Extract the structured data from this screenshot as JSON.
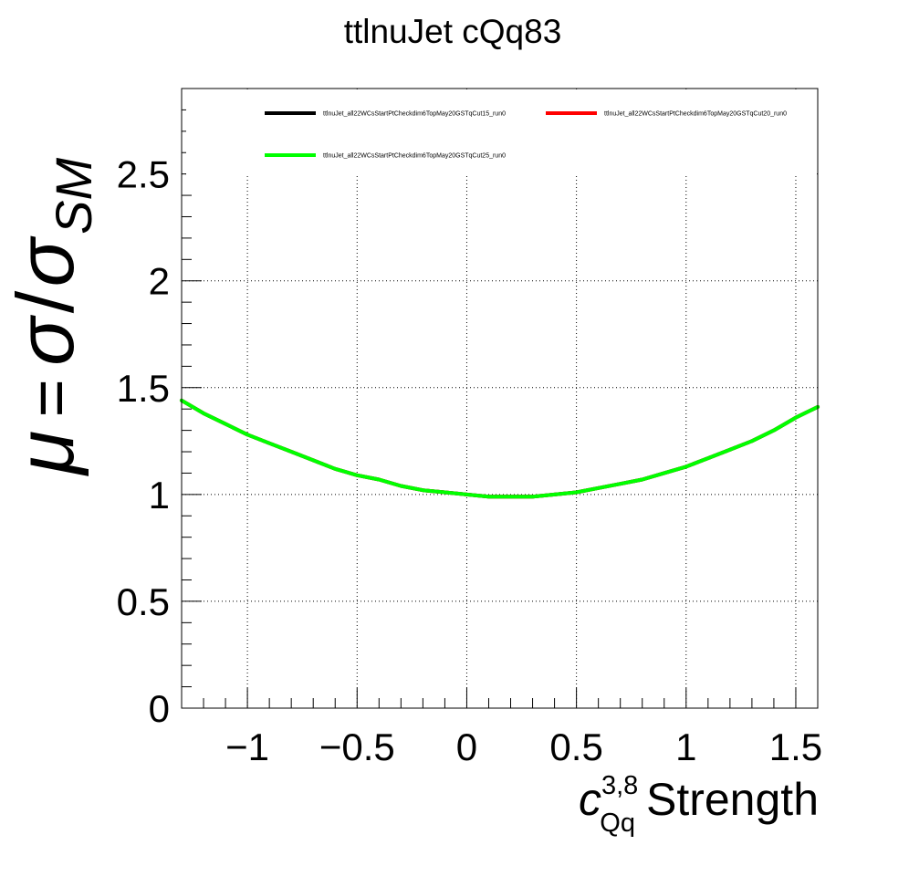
{
  "chart_data": {
    "type": "line",
    "title": "ttlnuJet cQq83",
    "xlabel": {
      "symbol": "c",
      "superscript": "3,8",
      "subscript": "Qq",
      "text": "Strength"
    },
    "ylabel": {
      "mu": "μ",
      "equals": "=",
      "sigma": "σ",
      "slash": "/",
      "subscript": "SM"
    },
    "xlim": [
      -1.3,
      1.6
    ],
    "ylim": [
      0,
      2.9
    ],
    "xticks": [
      -1,
      -0.5,
      0,
      0.5,
      1,
      1.5
    ],
    "xtick_labels": [
      "−1",
      "−0.5",
      "0",
      "0.5",
      "1",
      "1.5"
    ],
    "yticks": [
      0,
      0.5,
      1,
      1.5,
      2,
      2.5
    ],
    "ytick_labels": [
      "0",
      "0.5",
      "1",
      "1.5",
      "2",
      "2.5"
    ],
    "grid": true,
    "legend_position": "top",
    "x": [
      -1.3,
      -1.2,
      -1.1,
      -1.0,
      -0.9,
      -0.8,
      -0.7,
      -0.6,
      -0.5,
      -0.4,
      -0.3,
      -0.2,
      -0.1,
      0.0,
      0.1,
      0.2,
      0.3,
      0.4,
      0.5,
      0.6,
      0.7,
      0.8,
      0.9,
      1.0,
      1.1,
      1.2,
      1.3,
      1.4,
      1.5,
      1.6
    ],
    "series": [
      {
        "name": "ttlnuJet_all22WCsStartPtCheckdim6TopMay20GSTqCut15_run0",
        "color": "#000000",
        "values": [
          1.44,
          1.38,
          1.33,
          1.28,
          1.24,
          1.2,
          1.16,
          1.12,
          1.09,
          1.07,
          1.04,
          1.02,
          1.01,
          1.0,
          0.99,
          0.99,
          0.99,
          1.0,
          1.01,
          1.03,
          1.05,
          1.07,
          1.1,
          1.13,
          1.17,
          1.21,
          1.25,
          1.3,
          1.36,
          1.41
        ]
      },
      {
        "name": "ttlnuJet_all22WCsStartPtCheckdim6TopMay20GSTqCut20_run0",
        "color": "#ff0000",
        "values": [
          1.44,
          1.38,
          1.33,
          1.28,
          1.24,
          1.2,
          1.16,
          1.12,
          1.09,
          1.07,
          1.04,
          1.02,
          1.01,
          1.0,
          0.99,
          0.99,
          0.99,
          1.0,
          1.01,
          1.03,
          1.05,
          1.07,
          1.1,
          1.13,
          1.17,
          1.21,
          1.25,
          1.3,
          1.36,
          1.41
        ]
      },
      {
        "name": "ttlnuJet_all22WCsStartPtCheckdim6TopMay20GSTqCut25_run0",
        "color": "#00ff00",
        "values": [
          1.44,
          1.38,
          1.33,
          1.28,
          1.24,
          1.2,
          1.16,
          1.12,
          1.09,
          1.07,
          1.04,
          1.02,
          1.01,
          1.0,
          0.99,
          0.99,
          0.99,
          1.0,
          1.01,
          1.03,
          1.05,
          1.07,
          1.1,
          1.13,
          1.17,
          1.21,
          1.25,
          1.3,
          1.36,
          1.41
        ]
      }
    ]
  }
}
